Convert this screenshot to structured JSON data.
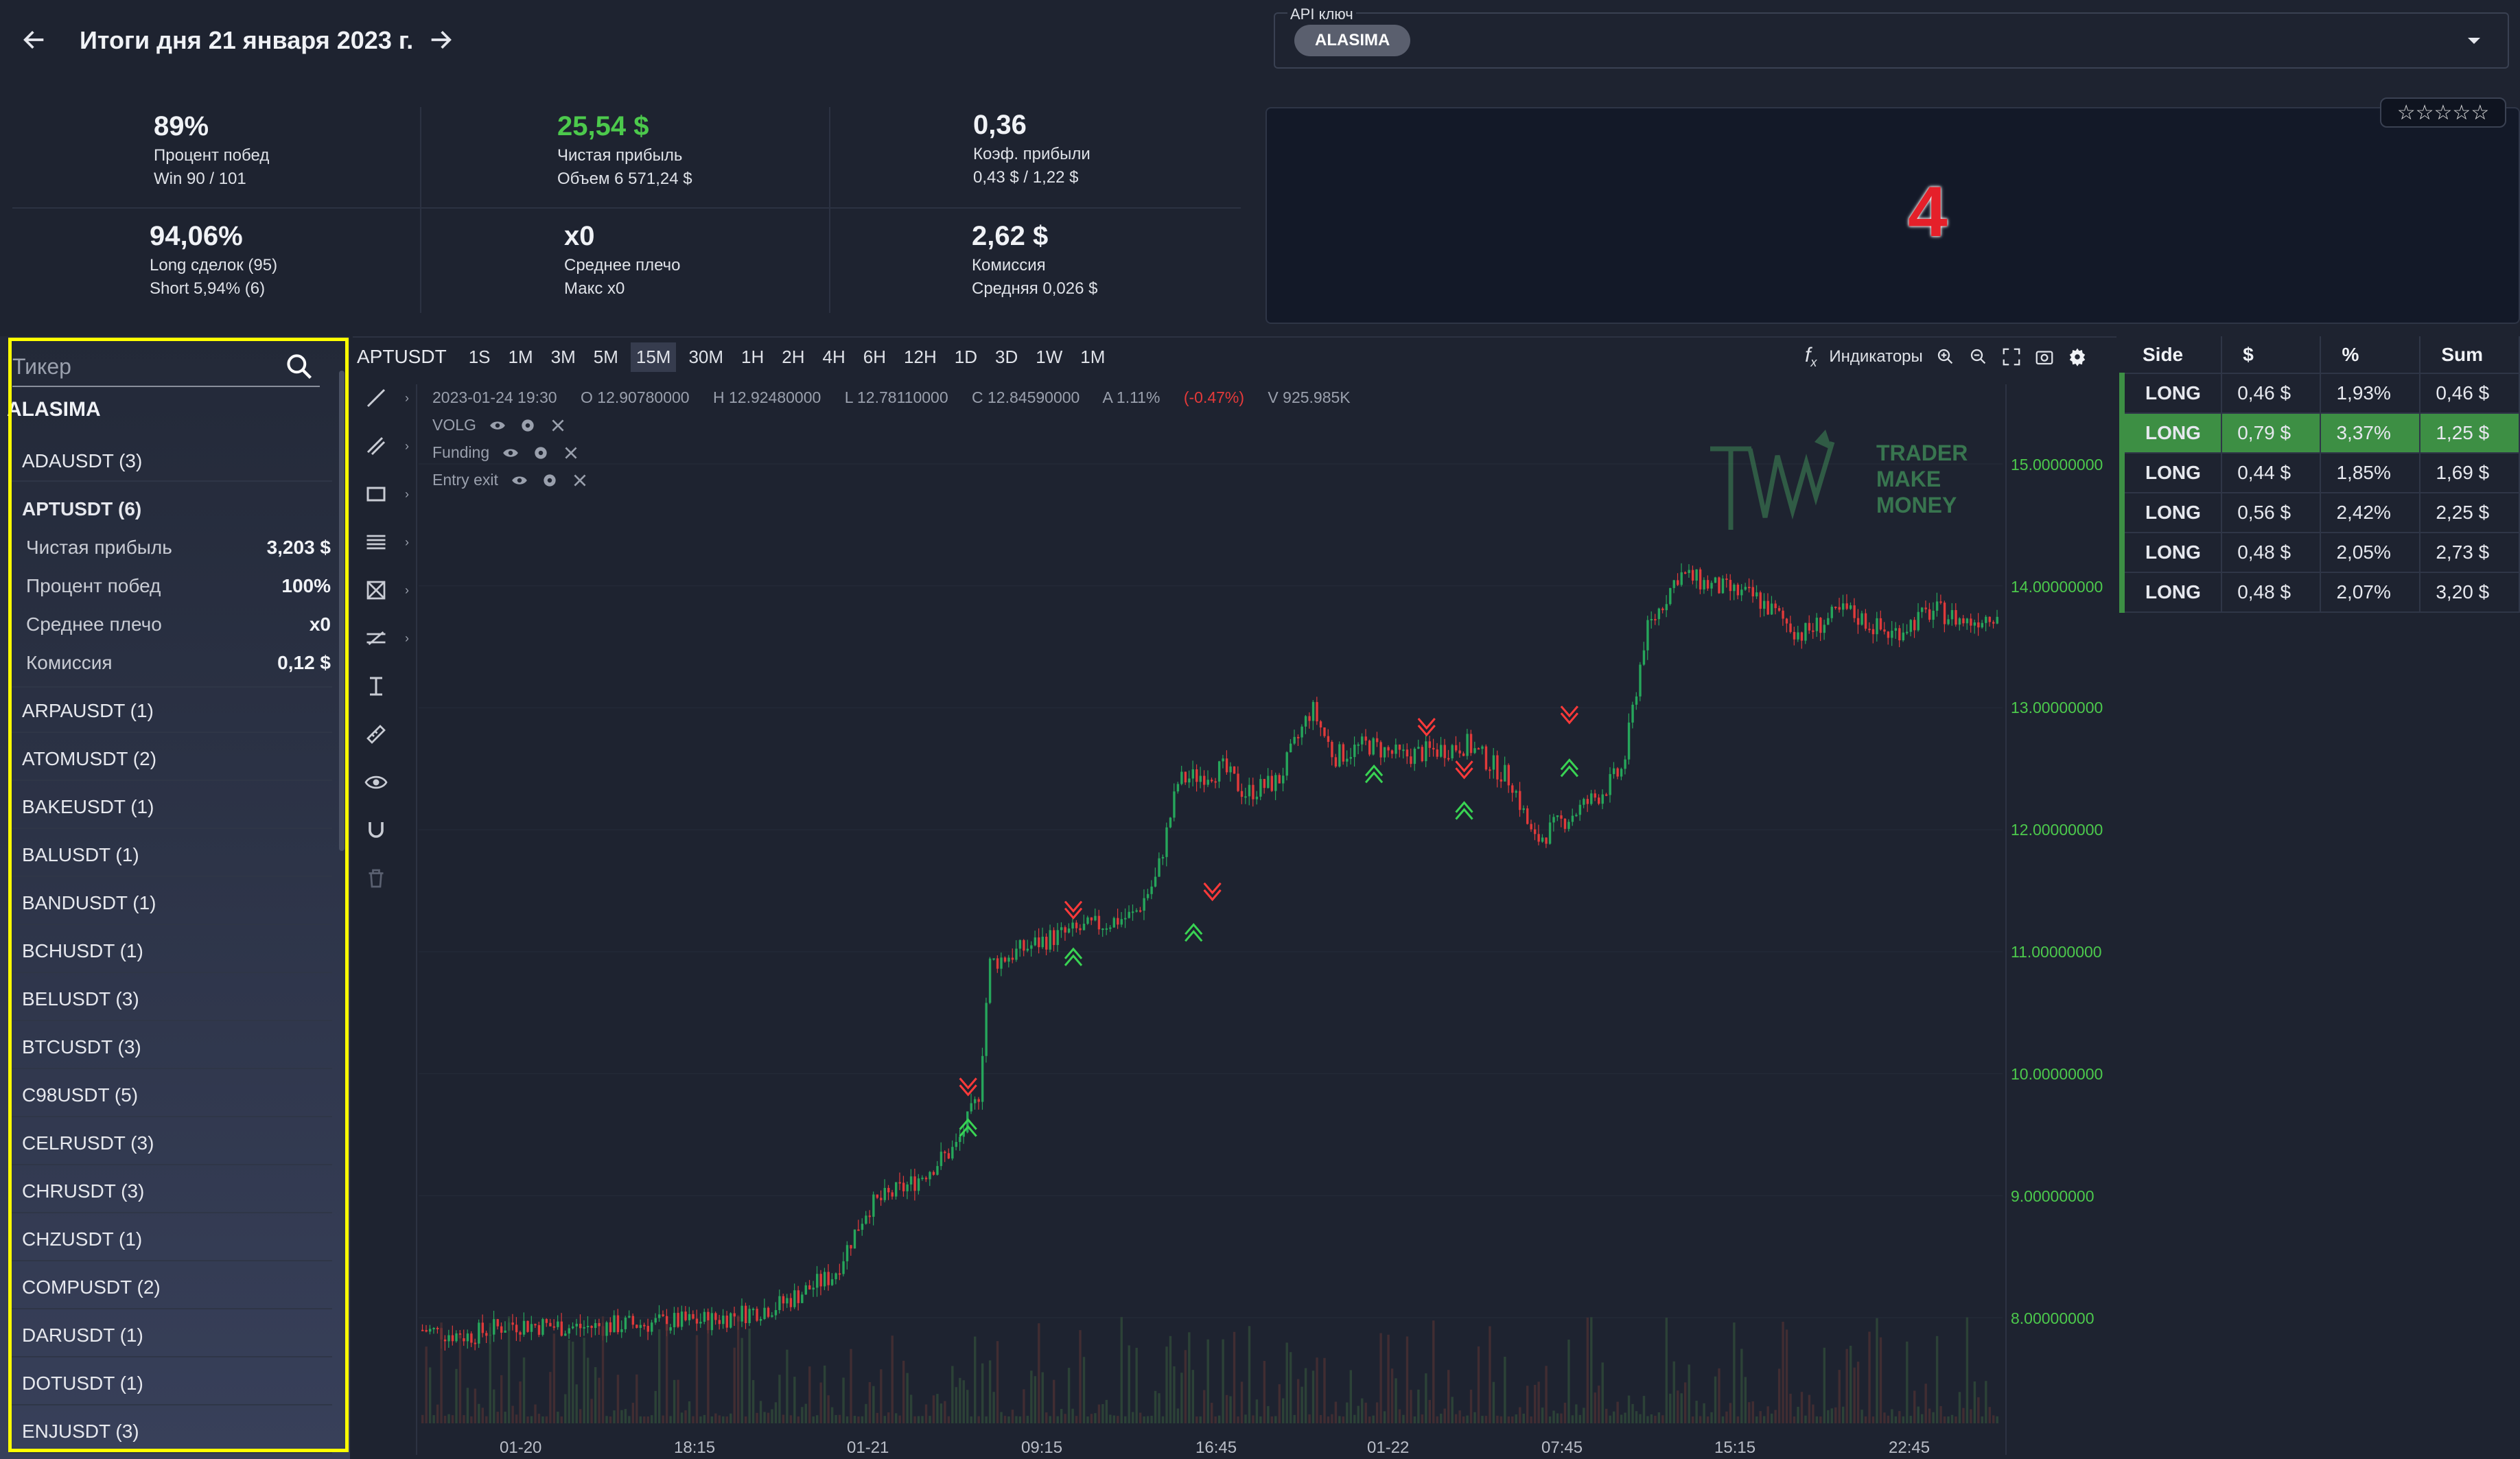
{
  "header": {
    "title": "Итоги дня 21 января 2023 г."
  },
  "stats": [
    {
      "value": "89%",
      "label": "Процент побед",
      "sub": "Win 90 / 101",
      "green": false
    },
    {
      "value": "25,54 $",
      "label": "Чистая прибыль",
      "sub": "Объем 6 571,24 $",
      "green": true
    },
    {
      "value": "0,36",
      "label": "Коэф. прибыли",
      "sub": "0,43 $ / 1,22 $",
      "green": false
    },
    {
      "value": "94,06%",
      "label": "Long сделок (95)",
      "sub": "Short 5,94% (6)",
      "green": false
    },
    {
      "value": "x0",
      "label": "Среднее плечо",
      "sub": "Макс x0",
      "green": false
    },
    {
      "value": "2,62 $",
      "label": "Комиссия",
      "sub": "Средняя 0,026 $",
      "green": false
    }
  ],
  "api": {
    "label": "API ключ",
    "chip": "ALASIMA"
  },
  "panel": {
    "number": "4",
    "stars": "☆☆☆☆☆"
  },
  "sidebar": {
    "search_placeholder": "Тикер",
    "user": "ALASIMA",
    "items_before": [
      "ADAUSDT (3)"
    ],
    "selected": {
      "name": "APTUSDT (6)",
      "details": [
        {
          "label": "Чистая прибыль",
          "value": "3,203 $"
        },
        {
          "label": "Процент побед",
          "value": "100%"
        },
        {
          "label": "Среднее плечо",
          "value": "x0"
        },
        {
          "label": "Комиссия",
          "value": "0,12 $"
        }
      ]
    },
    "items_after": [
      "ARPAUSDT (1)",
      "ATOMUSDT (2)",
      "BAKEUSDT (1)",
      "BALUSDT (1)",
      "BANDUSDT (1)",
      "BCHUSDT (1)",
      "BELUSDT (3)",
      "BTCUSDT (3)",
      "C98USDT (5)",
      "CELRUSDT (3)",
      "CHRUSDT (3)",
      "CHZUSDT (1)",
      "COMPUSDT (2)",
      "DARUSDT (1)",
      "DOTUSDT (1)",
      "ENJUSDT (3)"
    ]
  },
  "chart": {
    "symbol": "APTUSDT",
    "timeframes": [
      "1S",
      "1M",
      "3M",
      "5M",
      "15M",
      "30M",
      "1H",
      "2H",
      "4H",
      "6H",
      "12H",
      "1D",
      "3D",
      "1W",
      "1M"
    ],
    "active_timeframe": "15M",
    "indicators_label": "Индикаторы",
    "ohlc": {
      "date": "2023-01-24 19:30",
      "o": "O 12.90780000",
      "h": "H 12.92480000",
      "l": "L 12.78110000",
      "c": "C 12.84590000",
      "a": "A 1.11%",
      "chg": "(-0.47%)",
      "v": "V 925.985K"
    },
    "indicators": [
      "VOLG",
      "Funding",
      "Entry exit"
    ],
    "y_ticks": [
      "15.00000000",
      "14.00000000",
      "13.00000000",
      "12.00000000",
      "11.00000000",
      "10.00000000",
      "9.00000000",
      "8.00000000"
    ],
    "x_ticks": [
      "01-20",
      "18:15",
      "01-21",
      "09:15",
      "16:45",
      "01-22",
      "07:45",
      "15:15",
      "22:45"
    ],
    "logo_text": [
      "TRADER",
      "MAKE",
      "MONEY"
    ],
    "colors": {
      "up": "#26a65b",
      "down": "#e03a3a"
    }
  },
  "trades": {
    "headers": [
      "Side",
      "$",
      "%",
      "Sum"
    ],
    "rows": [
      {
        "side": "LONG",
        "usd": "0,46 $",
        "pct": "1,93%",
        "sum": "0,46 $"
      },
      {
        "side": "LONG",
        "usd": "0,79 $",
        "pct": "3,37%",
        "sum": "1,25 $"
      },
      {
        "side": "LONG",
        "usd": "0,44 $",
        "pct": "1,85%",
        "sum": "1,69 $"
      },
      {
        "side": "LONG",
        "usd": "0,56 $",
        "pct": "2,42%",
        "sum": "2,25 $"
      },
      {
        "side": "LONG",
        "usd": "0,48 $",
        "pct": "2,05%",
        "sum": "2,73 $"
      },
      {
        "side": "LONG",
        "usd": "0,48 $",
        "pct": "2,07%",
        "sum": "3,20 $"
      }
    ],
    "highlight_index": 1
  }
}
